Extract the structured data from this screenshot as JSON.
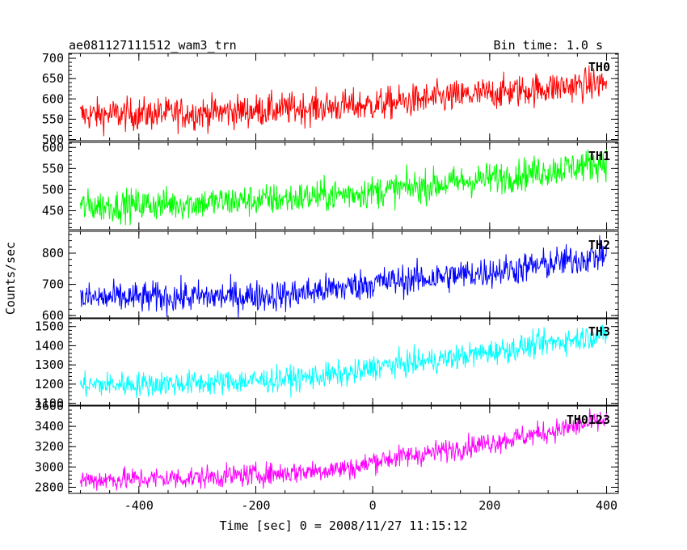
{
  "header": {
    "title": "ae081127111512_wam3_trn",
    "bin_time": "Bin time: 1.0 s"
  },
  "chart_data": {
    "type": "line",
    "ylabel": "Counts/sec",
    "xlabel": "Time [sec] 0 = 2008/11/27 11:15:12",
    "xlim": [
      -520,
      420
    ],
    "x_ticks": [
      -400,
      -200,
      0,
      200,
      400
    ],
    "x_range": [
      -500,
      400
    ],
    "grid": false,
    "panels": [
      {
        "name": "TH0",
        "color": "#ff0000",
        "ylim": [
          497,
          712
        ],
        "y_ticks": [
          500,
          550,
          600,
          650,
          700
        ],
        "trend": [
          [
            -500,
            560
          ],
          [
            -300,
            565
          ],
          [
            -150,
            575
          ],
          [
            0,
            585
          ],
          [
            100,
            600
          ],
          [
            250,
            620
          ],
          [
            400,
            640
          ]
        ],
        "noise_amplitude": 40
      },
      {
        "name": "TH1",
        "color": "#00ff00",
        "ylim": [
          405,
          612
        ],
        "y_ticks": [
          450,
          500,
          550,
          600
        ],
        "trend": [
          [
            -500,
            460
          ],
          [
            -300,
            468
          ],
          [
            -150,
            478
          ],
          [
            0,
            495
          ],
          [
            100,
            510
          ],
          [
            250,
            535
          ],
          [
            400,
            565
          ]
        ],
        "noise_amplitude": 38
      },
      {
        "name": "TH2",
        "color": "#0000ff",
        "ylim": [
          590,
          870
        ],
        "y_ticks": [
          600,
          700,
          800
        ],
        "trend": [
          [
            -500,
            655
          ],
          [
            -300,
            660
          ],
          [
            -150,
            665
          ],
          [
            -50,
            690
          ],
          [
            0,
            705
          ],
          [
            100,
            720
          ],
          [
            250,
            750
          ],
          [
            400,
            795
          ]
        ],
        "noise_amplitude": 50
      },
      {
        "name": "TH3",
        "color": "#00ffff",
        "ylim": [
          1090,
          1545
        ],
        "y_ticks": [
          1100,
          1200,
          1300,
          1400,
          1500
        ],
        "trend": [
          [
            -500,
            1195
          ],
          [
            -300,
            1205
          ],
          [
            -150,
            1225
          ],
          [
            -20,
            1260
          ],
          [
            0,
            1290
          ],
          [
            100,
            1320
          ],
          [
            250,
            1390
          ],
          [
            400,
            1460
          ]
        ],
        "noise_amplitude": 65
      },
      {
        "name": "TH0123",
        "color": "#ff00ff",
        "ylim": [
          2740,
          3600
        ],
        "y_ticks": [
          2800,
          3000,
          3200,
          3400,
          3600
        ],
        "trend": [
          [
            -500,
            2870
          ],
          [
            -300,
            2895
          ],
          [
            -150,
            2940
          ],
          [
            -20,
            3000
          ],
          [
            0,
            3060
          ],
          [
            100,
            3140
          ],
          [
            250,
            3290
          ],
          [
            400,
            3460
          ]
        ],
        "noise_amplitude": 110
      }
    ]
  }
}
